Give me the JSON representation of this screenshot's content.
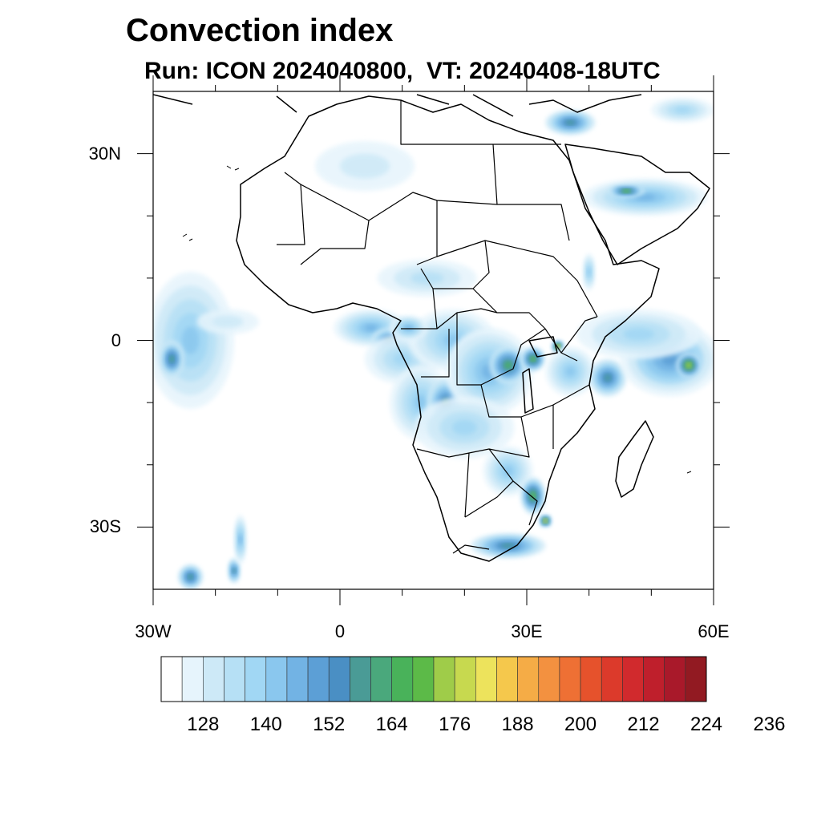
{
  "title": "Convection index",
  "subtitle": "Run: ICON 2024040800,  VT: 20240408-18UTC",
  "map": {
    "lon_range": [
      -30,
      60
    ],
    "lat_range": [
      -40,
      40
    ],
    "x_ticks": [
      {
        "lon": -30,
        "label": "30W"
      },
      {
        "lon": 0,
        "label": "0"
      },
      {
        "lon": 30,
        "label": "30E"
      },
      {
        "lon": 60,
        "label": "60E"
      }
    ],
    "y_ticks": [
      {
        "lat": 30,
        "label": "30N"
      },
      {
        "lat": 0,
        "label": "0"
      },
      {
        "lat": -30,
        "label": "30S"
      }
    ],
    "minor_x_ticks": [
      -20,
      -10,
      10,
      20,
      40,
      50
    ],
    "minor_y_ticks": [
      20,
      10,
      -10,
      -20
    ]
  },
  "colorbar": {
    "colors": [
      "#ffffff",
      "#e6f4fc",
      "#cde9f7",
      "#b6e0f5",
      "#a1d7f4",
      "#8ac7ee",
      "#72b3e4",
      "#5c9fd6",
      "#4a8fc4",
      "#4a9b96",
      "#4aa87c",
      "#49b25a",
      "#5cba48",
      "#9fcc49",
      "#c7d94f",
      "#ede35c",
      "#f5c84c",
      "#f5ac46",
      "#f39140",
      "#ee7034",
      "#e6522c",
      "#dc3a2b",
      "#d12a2d",
      "#bf1f2c",
      "#a9192a",
      "#921a22"
    ],
    "tick_labels": [
      "128",
      "140",
      "152",
      "164",
      "176",
      "188",
      "200",
      "212",
      "224",
      "236"
    ]
  },
  "field_patches": [
    {
      "lon": -25,
      "lat": 4,
      "level": 16,
      "rlon": 3,
      "rlat": 2
    },
    {
      "lon": -26,
      "lat": 1,
      "level": 8,
      "rlon": 4,
      "rlat": 7
    },
    {
      "lon": -24,
      "lat": 0,
      "level": 5,
      "rlon": 7,
      "rlat": 11
    },
    {
      "lon": -27,
      "lat": -3,
      "level": 10,
      "rlon": 2,
      "rlat": 3
    },
    {
      "lon": -18,
      "lat": 3,
      "level": 2,
      "rlon": 5,
      "rlat": 2
    },
    {
      "lon": 5,
      "lat": 2,
      "level": 6,
      "rlon": 6,
      "rlat": 3
    },
    {
      "lon": 8,
      "lat": 0,
      "level": 9,
      "rlon": 3,
      "rlat": 2
    },
    {
      "lon": 10,
      "lat": -3,
      "level": 4,
      "rlon": 6,
      "rlat": 4
    },
    {
      "lon": 13,
      "lat": -10,
      "level": 5,
      "rlon": 5,
      "rlat": 6
    },
    {
      "lon": 17,
      "lat": -10,
      "level": 9,
      "rlon": 3,
      "rlat": 4
    },
    {
      "lon": 18,
      "lat": 0,
      "level": 5,
      "rlon": 7,
      "rlat": 5
    },
    {
      "lon": 24,
      "lat": -5,
      "level": 6,
      "rlon": 7,
      "rlat": 7
    },
    {
      "lon": 27,
      "lat": -4,
      "level": 11,
      "rlon": 3,
      "rlat": 3
    },
    {
      "lon": 31,
      "lat": -3,
      "level": 12,
      "rlon": 2,
      "rlat": 2
    },
    {
      "lon": 35,
      "lat": -1,
      "level": 16,
      "rlon": 1,
      "rlat": 1
    },
    {
      "lon": 37,
      "lat": -5,
      "level": 5,
      "rlon": 4,
      "rlat": 4
    },
    {
      "lon": 20,
      "lat": -14,
      "level": 4,
      "rlon": 8,
      "rlat": 5
    },
    {
      "lon": 27,
      "lat": -21,
      "level": 5,
      "rlon": 4,
      "rlat": 4
    },
    {
      "lon": 31,
      "lat": -25,
      "level": 12,
      "rlon": 2,
      "rlat": 3
    },
    {
      "lon": 27,
      "lat": -33,
      "level": 9,
      "rlon": 6,
      "rlat": 2
    },
    {
      "lon": 33,
      "lat": -29,
      "level": 15,
      "rlon": 1,
      "rlat": 1
    },
    {
      "lon": 43,
      "lat": -6,
      "level": 9,
      "rlon": 3,
      "rlat": 3
    },
    {
      "lon": 53,
      "lat": -3,
      "level": 7,
      "rlon": 8,
      "rlat": 6
    },
    {
      "lon": 56,
      "lat": -4,
      "level": 14,
      "rlon": 2,
      "rlat": 2
    },
    {
      "lon": 48,
      "lat": 1,
      "level": 4,
      "rlon": 10,
      "rlat": 4
    },
    {
      "lon": 49,
      "lat": 23,
      "level": 6,
      "rlon": 10,
      "rlat": 3
    },
    {
      "lon": 46,
      "lat": 24,
      "level": 12,
      "rlon": 3,
      "rlat": 1
    },
    {
      "lon": 37,
      "lat": 35,
      "level": 9,
      "rlon": 4,
      "rlat": 2
    },
    {
      "lon": 55,
      "lat": 37,
      "level": 4,
      "rlon": 5,
      "rlat": 2
    },
    {
      "lon": 14,
      "lat": 10,
      "level": 3,
      "rlon": 8,
      "rlat": 3
    },
    {
      "lon": 4,
      "lat": 28,
      "level": 2,
      "rlon": 8,
      "rlat": 4
    },
    {
      "lon": -24,
      "lat": -38,
      "level": 10,
      "rlon": 2,
      "rlat": 2
    },
    {
      "lon": -17,
      "lat": -37,
      "level": 9,
      "rlon": 1,
      "rlat": 2
    },
    {
      "lon": -16,
      "lat": -32,
      "level": 6,
      "rlon": 1,
      "rlat": 4
    },
    {
      "lon": 40,
      "lat": 11,
      "level": 5,
      "rlon": 1,
      "rlat": 3
    },
    {
      "lon": 11,
      "lat": 2,
      "level": 6,
      "rlon": 3,
      "rlat": 2
    }
  ]
}
